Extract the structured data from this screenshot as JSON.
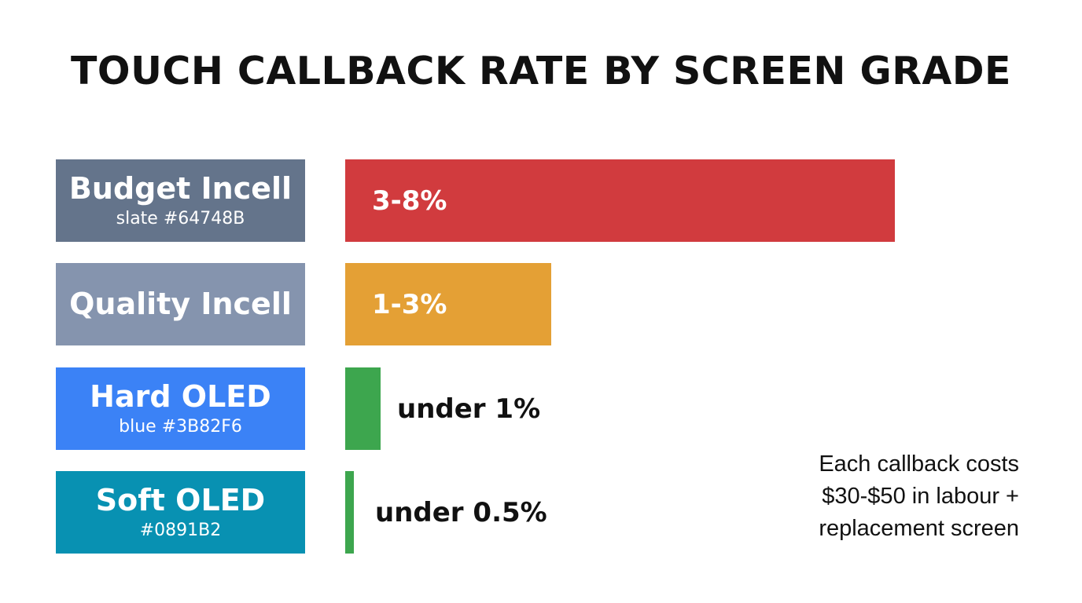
{
  "chart_data": {
    "type": "bar",
    "orientation": "horizontal",
    "title": "TOUCH CALLBACK RATE BY SCREEN GRADE",
    "categories": [
      "Budget Incell",
      "Quality Incell",
      "Hard OLED",
      "Soft OLED"
    ],
    "category_sublabels": [
      "slate #64748B",
      "",
      "blue #3B82F6",
      "#0891B2"
    ],
    "value_labels": [
      "3-8%",
      "1-3%",
      "under 1%",
      "under 0.5%"
    ],
    "values": [
      8,
      3,
      1,
      0.5
    ],
    "xlim": [
      0,
      8
    ],
    "label_colors": [
      "#64748B",
      "#8594AE",
      "#3B82F6",
      "#0891B2"
    ],
    "bar_colors": [
      "#D13B3E",
      "#E4A035",
      "#3DA64E",
      "#3DA64E"
    ],
    "annotation": [
      "Each callback costs",
      "$30-$50 in labour +",
      "replacement screen"
    ]
  }
}
